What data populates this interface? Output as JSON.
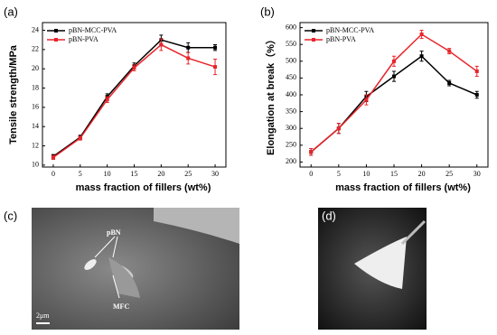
{
  "chart_data": [
    {
      "type": "line",
      "panel": "(a)",
      "ylabel": "Tensile strength/MPa",
      "xlabel": "mass fraction of fillers (wt%)",
      "x": [
        0,
        5,
        10,
        15,
        20,
        25,
        30
      ],
      "xlim": [
        -2,
        32
      ],
      "xticks": [
        0,
        5,
        10,
        15,
        20,
        25,
        30
      ],
      "ylim": [
        9.8,
        24.8
      ],
      "yticks": [
        10,
        12,
        14,
        16,
        18,
        20,
        22,
        24
      ],
      "legend": "top-left",
      "series": [
        {
          "name": "pBN-MCC-PVA",
          "color": "#000000",
          "values": [
            10.9,
            12.9,
            17.1,
            20.3,
            23.0,
            22.2,
            22.2
          ],
          "errors": [
            0.2,
            0.2,
            0.3,
            0.3,
            0.5,
            0.5,
            0.3
          ]
        },
        {
          "name": "pBN-PVA",
          "color": "#e8252b",
          "values": [
            10.8,
            12.8,
            16.8,
            20.1,
            22.5,
            21.1,
            20.2
          ],
          "errors": [
            0.2,
            0.2,
            0.3,
            0.3,
            0.6,
            0.6,
            0.8
          ]
        }
      ]
    },
    {
      "type": "line",
      "panel": "(b)",
      "ylabel": "Elongation at break（%）",
      "xlabel": "mass fraction of fillers (wt%)",
      "x": [
        0,
        5,
        10,
        15,
        20,
        25,
        30
      ],
      "xlim": [
        -2,
        32
      ],
      "xticks": [
        0,
        5,
        10,
        15,
        20,
        25,
        30
      ],
      "ylim": [
        185,
        615
      ],
      "yticks": [
        200,
        250,
        300,
        350,
        400,
        450,
        500,
        550,
        600
      ],
      "legend": "top-left",
      "series": [
        {
          "name": "pBN-MCC-PVA",
          "color": "#000000",
          "values": [
            230,
            300,
            395,
            455,
            515,
            435,
            400
          ],
          "errors": [
            10,
            15,
            15,
            15,
            15,
            8,
            10
          ]
        },
        {
          "name": "pBN-PVA",
          "color": "#e8252b",
          "values": [
            230,
            300,
            385,
            500,
            580,
            530,
            470
          ],
          "errors": [
            10,
            15,
            15,
            15,
            12,
            8,
            15
          ]
        }
      ]
    }
  ],
  "panels": {
    "c": {
      "label": "(c)",
      "labels": [
        "pBN",
        "MFC",
        "2μm"
      ]
    },
    "d": {
      "label": "(d)"
    }
  }
}
